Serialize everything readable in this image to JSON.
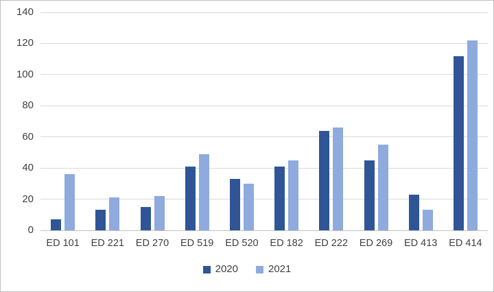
{
  "chart_data": {
    "type": "bar",
    "title": "",
    "xlabel": "",
    "ylabel": "",
    "categories": [
      "ED 101",
      "ED 221",
      "ED 270",
      "ED 519",
      "ED 520",
      "ED 182",
      "ED 222",
      "ED 269",
      "ED 413",
      "ED 414"
    ],
    "series": [
      {
        "name": "2020",
        "color": "#2F5597",
        "values": [
          7,
          13,
          15,
          41,
          33,
          41,
          64,
          45,
          23,
          112
        ]
      },
      {
        "name": "2021",
        "color": "#8FAADC",
        "values": [
          36,
          21,
          22,
          49,
          30,
          45,
          66,
          55,
          13,
          122
        ]
      }
    ],
    "ylim": [
      0,
      140
    ],
    "yticks": [
      0,
      20,
      40,
      60,
      80,
      100,
      120,
      140
    ],
    "grid": true,
    "legend_position": "bottom",
    "gridline_color": "#d9d9d9",
    "axis_line_color": "#bfbfbf",
    "tick_text_color": "#404040",
    "background_color": "#ffffff",
    "border_color": "#bfbfbf"
  }
}
